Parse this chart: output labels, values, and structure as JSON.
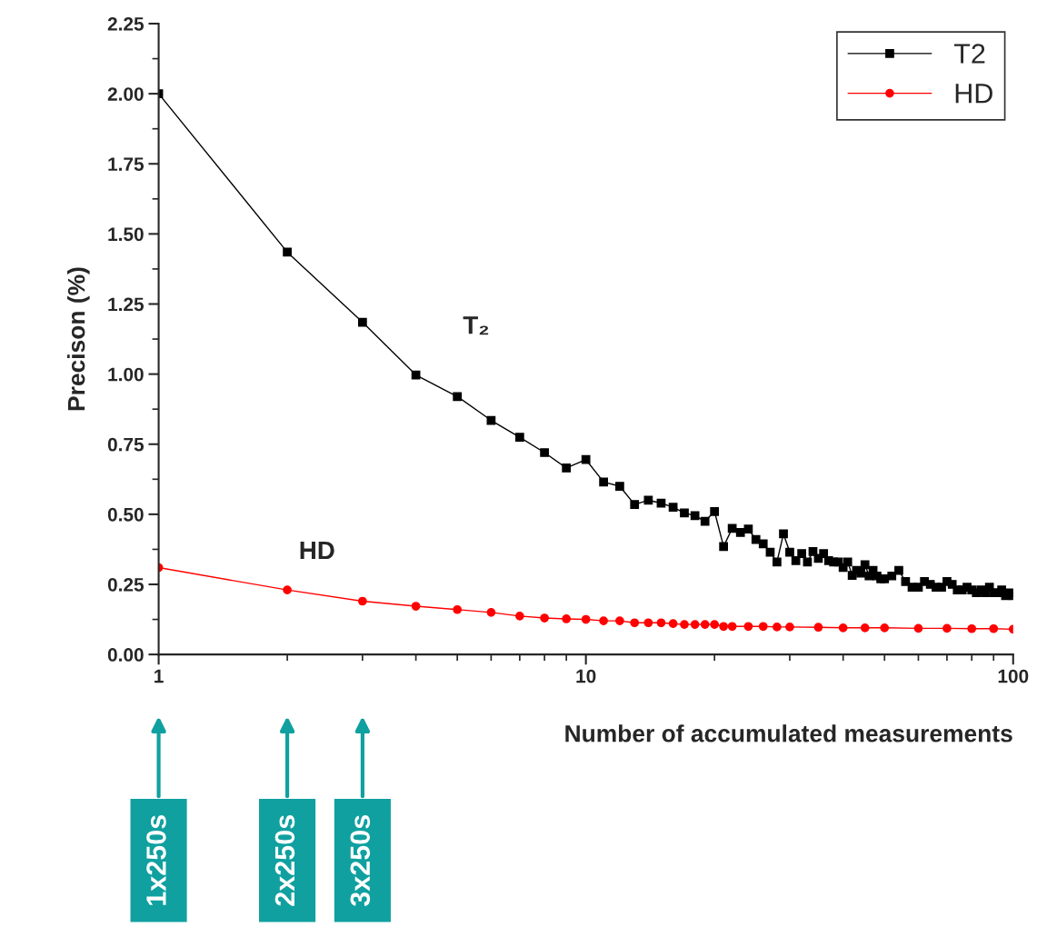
{
  "chart_data": {
    "type": "line",
    "xlabel": "Number of accumulated measurements",
    "ylabel": "Precison (%)",
    "log": "x",
    "xlim": [
      1,
      100
    ],
    "xticks": [
      1,
      10,
      100
    ],
    "ylim": [
      0,
      2.25
    ],
    "yticks": [
      {
        "value": 0,
        "label": "0.00"
      },
      {
        "value": 0.25,
        "label": "0.25"
      },
      {
        "value": 0.5,
        "label": "0.50"
      },
      {
        "value": 0.75,
        "label": "0.75"
      },
      {
        "value": 1,
        "label": "1.00"
      },
      {
        "value": 1.25,
        "label": "1.25"
      },
      {
        "value": 1.5,
        "label": "1.50"
      },
      {
        "value": 1.75,
        "label": "1.75"
      },
      {
        "value": 2,
        "label": "2.00"
      },
      {
        "value": 2.25,
        "label": "2.25"
      }
    ],
    "grid": false,
    "legend": "top right",
    "series": [
      {
        "name": "T2",
        "color": "#000000",
        "marker": "square",
        "x": [
          1,
          2,
          3,
          4,
          5,
          6,
          7,
          8,
          9,
          10,
          11,
          12,
          13,
          14,
          15,
          16,
          17,
          18,
          19,
          20,
          21,
          22,
          23,
          24,
          25,
          26,
          27,
          28,
          29,
          30,
          31,
          32,
          33,
          34,
          35,
          36,
          37,
          38,
          39,
          40,
          41,
          42,
          43,
          44,
          45,
          46,
          47,
          48,
          49,
          50,
          52,
          54,
          56,
          58,
          60,
          62,
          64,
          66,
          68,
          70,
          72,
          74,
          76,
          78,
          80,
          82,
          84,
          86,
          88,
          90,
          92,
          94,
          96,
          98,
          100
        ],
        "values": [
          2.0,
          1.435,
          1.185,
          0.997,
          0.92,
          0.835,
          0.775,
          0.72,
          0.665,
          0.695,
          0.615,
          0.6,
          0.535,
          0.55,
          0.54,
          0.525,
          0.505,
          0.495,
          0.475,
          0.51,
          0.385,
          0.45,
          0.435,
          0.447,
          0.41,
          0.395,
          0.365,
          0.33,
          0.43,
          0.365,
          0.335,
          0.36,
          0.33,
          0.367,
          0.343,
          0.36,
          0.335,
          0.33,
          0.33,
          0.31,
          0.33,
          0.282,
          0.3,
          0.29,
          0.32,
          0.28,
          0.3,
          0.28,
          0.27,
          0.27,
          0.28,
          0.3,
          0.26,
          0.24,
          0.24,
          0.26,
          0.25,
          0.24,
          0.24,
          0.26,
          0.25,
          0.23,
          0.23,
          0.24,
          0.23,
          0.22,
          0.23,
          0.22,
          0.24,
          0.22,
          0.22,
          0.23,
          0.21,
          0.22,
          0.21
        ]
      },
      {
        "name": "HD",
        "color": "#ff0000",
        "marker": "circle",
        "x": [
          1,
          2,
          3,
          4,
          5,
          6,
          7,
          8,
          9,
          10,
          11,
          12,
          13,
          14,
          15,
          16,
          17,
          18,
          19,
          20,
          21,
          22,
          24,
          26,
          28,
          30,
          35,
          40,
          45,
          50,
          60,
          70,
          80,
          90,
          100
        ],
        "values": [
          0.31,
          0.23,
          0.19,
          0.172,
          0.16,
          0.15,
          0.137,
          0.13,
          0.127,
          0.125,
          0.12,
          0.12,
          0.113,
          0.113,
          0.113,
          0.11,
          0.107,
          0.107,
          0.107,
          0.107,
          0.1,
          0.1,
          0.1,
          0.1,
          0.098,
          0.098,
          0.097,
          0.095,
          0.095,
          0.095,
          0.093,
          0.093,
          0.092,
          0.092,
          0.09
        ]
      }
    ],
    "annotations": [
      "T₂",
      "HD",
      "1x250s",
      "2x250s",
      "3x250s"
    ]
  }
}
